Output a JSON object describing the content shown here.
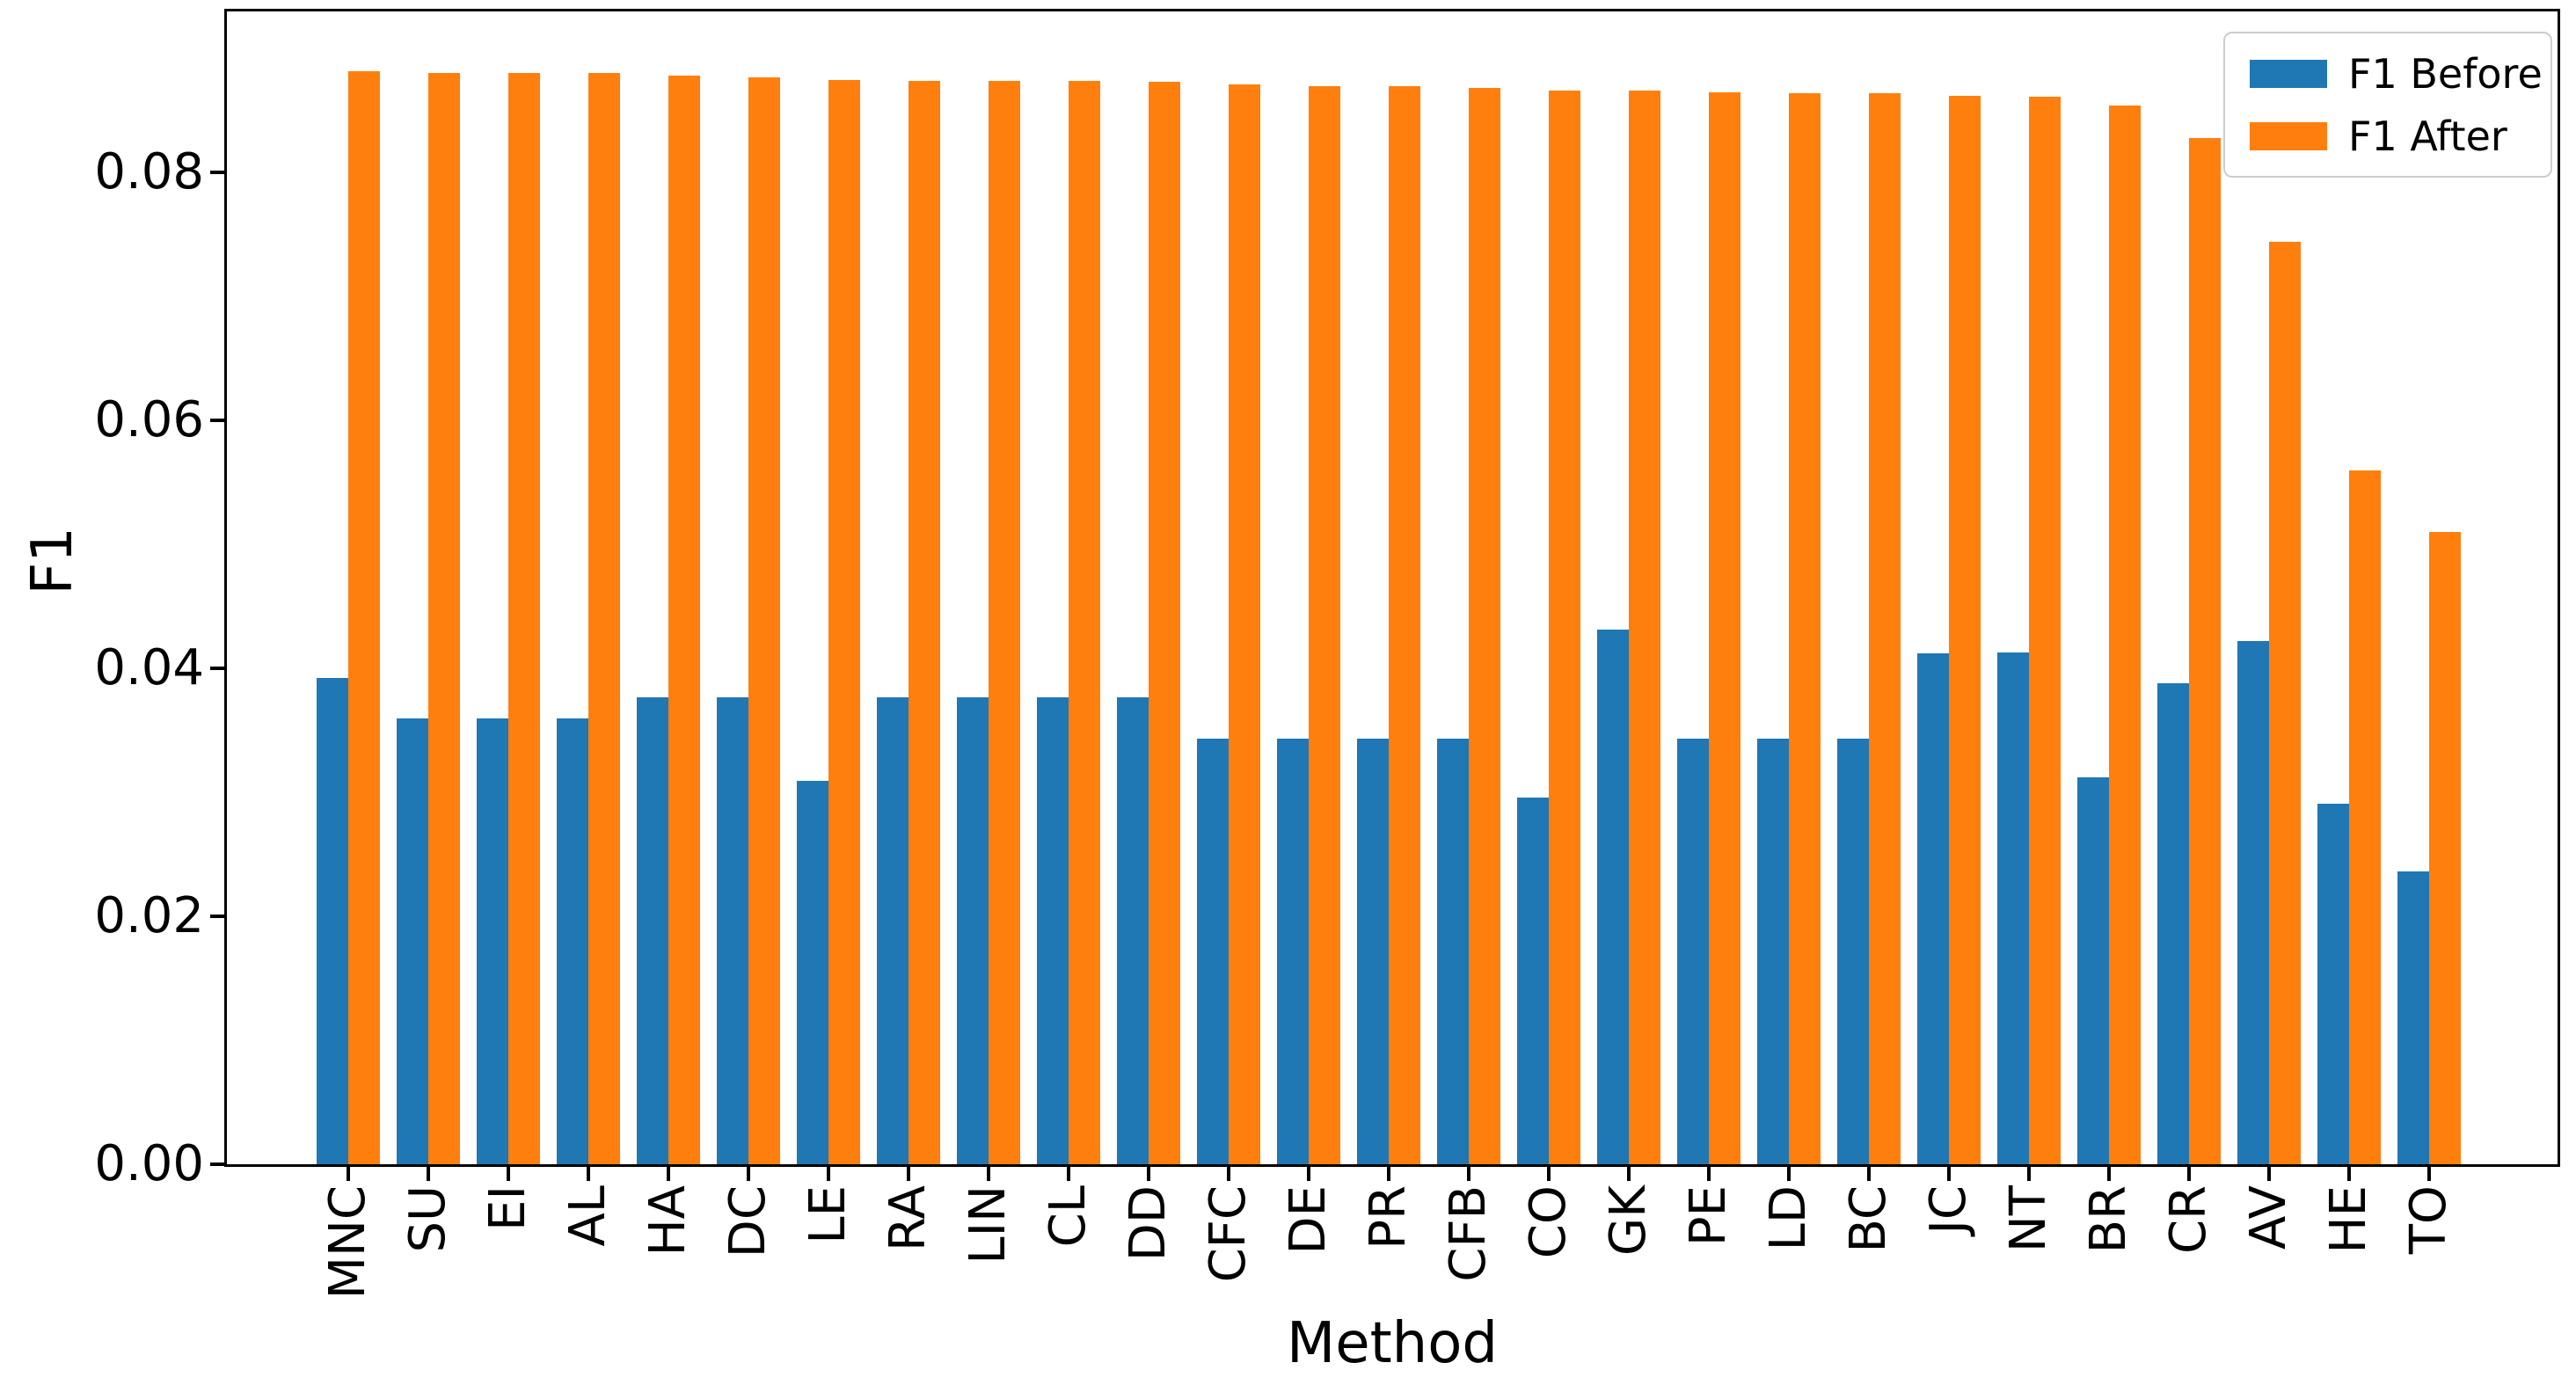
{
  "chart_data": {
    "type": "bar",
    "title": "",
    "xlabel": "Method",
    "ylabel": "F1",
    "categories": [
      "MNC",
      "SU",
      "EI",
      "AL",
      "HA",
      "DC",
      "LE",
      "RA",
      "LIN",
      "CL",
      "DD",
      "CFC",
      "DE",
      "PR",
      "CFB",
      "CO",
      "GK",
      "PE",
      "LD",
      "BC",
      "JC",
      "NT",
      "BR",
      "CR",
      "AV",
      "HE",
      "TO"
    ],
    "series": [
      {
        "name": "F1 Before",
        "color": "#1f77b4",
        "values": [
          0.0392,
          0.036,
          0.036,
          0.036,
          0.0377,
          0.0377,
          0.0309,
          0.0377,
          0.0377,
          0.0377,
          0.0377,
          0.0343,
          0.0343,
          0.0343,
          0.0343,
          0.0296,
          0.0431,
          0.0343,
          0.0343,
          0.0343,
          0.0412,
          0.0413,
          0.0312,
          0.0388,
          0.0422,
          0.0291,
          0.0236
        ]
      },
      {
        "name": "F1 After",
        "color": "#ff7f0e",
        "values": [
          0.0882,
          0.088,
          0.088,
          0.088,
          0.0878,
          0.0877,
          0.0875,
          0.0874,
          0.0874,
          0.0874,
          0.0873,
          0.0871,
          0.087,
          0.087,
          0.0868,
          0.0866,
          0.0866,
          0.0865,
          0.0864,
          0.0864,
          0.0862,
          0.0861,
          0.0854,
          0.0828,
          0.0744,
          0.056,
          0.051
        ]
      }
    ],
    "ylim": [
      0,
      0.093
    ],
    "ytick_labels": [
      "0.00",
      "0.02",
      "0.04",
      "0.06",
      "0.08"
    ],
    "ytick_values": [
      0.0,
      0.02,
      0.04,
      0.06,
      0.08
    ],
    "grid": false,
    "legend_position": "upper right",
    "bar_width_fraction": 0.4
  },
  "legend": {
    "items": [
      {
        "label": "F1 Before",
        "color": "#1f77b4"
      },
      {
        "label": "F1 After",
        "color": "#ff7f0e"
      }
    ]
  }
}
